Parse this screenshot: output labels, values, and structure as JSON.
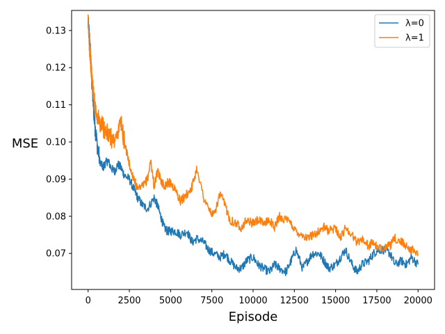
{
  "chart_data": {
    "type": "line",
    "title": "",
    "xlabel": "Episode",
    "ylabel": "MSE",
    "xlim": [
      -1000,
      21000
    ],
    "ylim": [
      0.0603,
      0.1354
    ],
    "xticks": [
      0,
      2500,
      5000,
      7500,
      10000,
      12500,
      15000,
      17500,
      20000
    ],
    "yticks": [
      0.07,
      0.08,
      0.09,
      0.1,
      0.11,
      0.12,
      0.13
    ],
    "xtick_labels": [
      "0",
      "2500",
      "5000",
      "7500",
      "10000",
      "12500",
      "15000",
      "17500",
      "20000"
    ],
    "ytick_labels": [
      "0.07",
      "0.08",
      "0.09",
      "0.10",
      "0.11",
      "0.12",
      "0.13"
    ],
    "grid": false,
    "legend_position": "top-right",
    "series": [
      {
        "name": "λ=0",
        "color": "#1f77b4",
        "x": [
          0,
          100,
          200,
          300,
          400,
          500,
          700,
          900,
          1000,
          1200,
          1400,
          1600,
          1800,
          2000,
          2200,
          2500,
          2800,
          3000,
          3300,
          3600,
          4000,
          4200,
          4400,
          4600,
          4800,
          5000,
          5300,
          5600,
          6000,
          6300,
          6600,
          7000,
          7300,
          7600,
          8000,
          8300,
          8600,
          9000,
          9300,
          9600,
          10000,
          10300,
          10600,
          11000,
          11300,
          11600,
          12000,
          12300,
          12600,
          13000,
          13300,
          13600,
          14000,
          14300,
          14600,
          15000,
          15300,
          15600,
          16000,
          16300,
          16600,
          17000,
          17300,
          17600,
          18000,
          18300,
          18600,
          19000,
          19300,
          19600,
          20000
        ],
        "values": [
          0.132,
          0.127,
          0.118,
          0.111,
          0.105,
          0.101,
          0.095,
          0.093,
          0.094,
          0.095,
          0.093,
          0.092,
          0.094,
          0.093,
          0.091,
          0.09,
          0.087,
          0.085,
          0.083,
          0.082,
          0.085,
          0.083,
          0.08,
          0.077,
          0.076,
          0.076,
          0.076,
          0.075,
          0.076,
          0.073,
          0.074,
          0.073,
          0.071,
          0.07,
          0.069,
          0.07,
          0.068,
          0.066,
          0.066,
          0.068,
          0.069,
          0.067,
          0.066,
          0.065,
          0.067,
          0.066,
          0.065,
          0.068,
          0.071,
          0.066,
          0.068,
          0.07,
          0.07,
          0.068,
          0.066,
          0.067,
          0.069,
          0.071,
          0.067,
          0.065,
          0.067,
          0.068,
          0.07,
          0.071,
          0.071,
          0.07,
          0.067,
          0.068,
          0.067,
          0.069,
          0.067
        ]
      },
      {
        "name": "λ=1",
        "color": "#ff7f0e",
        "x": [
          0,
          100,
          200,
          300,
          400,
          500,
          700,
          900,
          1000,
          1200,
          1400,
          1600,
          1800,
          2000,
          2200,
          2400,
          2600,
          2800,
          3000,
          3300,
          3600,
          3800,
          4000,
          4200,
          4400,
          4600,
          4800,
          5000,
          5300,
          5600,
          6000,
          6300,
          6600,
          7000,
          7300,
          7600,
          8000,
          8300,
          8600,
          9000,
          9300,
          9600,
          10000,
          10300,
          10600,
          11000,
          11300,
          11600,
          12000,
          12300,
          12600,
          13000,
          13300,
          13600,
          14000,
          14300,
          14600,
          15000,
          15300,
          15600,
          16000,
          16300,
          16600,
          17000,
          17300,
          17600,
          18000,
          18300,
          18600,
          19000,
          19300,
          19600,
          20000
        ],
        "values": [
          0.132,
          0.125,
          0.119,
          0.114,
          0.11,
          0.108,
          0.105,
          0.104,
          0.103,
          0.102,
          0.101,
          0.1,
          0.103,
          0.105,
          0.1,
          0.096,
          0.092,
          0.09,
          0.087,
          0.088,
          0.09,
          0.095,
          0.088,
          0.092,
          0.09,
          0.088,
          0.089,
          0.089,
          0.087,
          0.084,
          0.086,
          0.088,
          0.093,
          0.085,
          0.082,
          0.08,
          0.086,
          0.083,
          0.079,
          0.078,
          0.077,
          0.079,
          0.078,
          0.079,
          0.078,
          0.079,
          0.077,
          0.08,
          0.079,
          0.078,
          0.076,
          0.075,
          0.074,
          0.075,
          0.076,
          0.077,
          0.076,
          0.077,
          0.074,
          0.077,
          0.075,
          0.073,
          0.074,
          0.072,
          0.073,
          0.071,
          0.072,
          0.072,
          0.074,
          0.073,
          0.072,
          0.071,
          0.07
        ]
      }
    ]
  }
}
